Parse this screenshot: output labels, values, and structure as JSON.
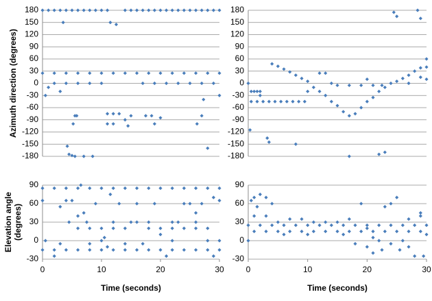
{
  "chart_data": [
    {
      "type": "scatter",
      "y_label": [
        "Azimuth direction (degrees)"
      ],
      "xlim": [
        0,
        30
      ],
      "ylim": [
        -180,
        180
      ],
      "yticks": [
        -180,
        -150,
        -120,
        -90,
        -60,
        -30,
        0,
        30,
        60,
        90,
        120,
        150,
        180
      ],
      "grid": true,
      "x": [
        0,
        1,
        2,
        3,
        4,
        5,
        6,
        7,
        8,
        9,
        10,
        11,
        14,
        15,
        16,
        17,
        18,
        19,
        20,
        21,
        22,
        23,
        24,
        25,
        26,
        27,
        28,
        29,
        30,
        0,
        2,
        4,
        6,
        8,
        10,
        12,
        14,
        16,
        18,
        20,
        22,
        24,
        26,
        28,
        30,
        2,
        4,
        6,
        8,
        10,
        17,
        19,
        21,
        23,
        25,
        27,
        29,
        3.5,
        11.5,
        12.5,
        0.5,
        1,
        3,
        4.2,
        4.5,
        5,
        5.5,
        7,
        8.5,
        5.5,
        5.8,
        5.2,
        11,
        12,
        13,
        11,
        12,
        14,
        14.5,
        15,
        17.5,
        18.5,
        19,
        20,
        26.2,
        27,
        27.3,
        28,
        30
      ],
      "series": [
        {
          "color": "#4a7ebb",
          "values": [
            180,
            180,
            180,
            180,
            180,
            180,
            180,
            180,
            180,
            180,
            180,
            180,
            180,
            180,
            180,
            180,
            180,
            180,
            180,
            180,
            180,
            180,
            180,
            180,
            180,
            180,
            180,
            180,
            180,
            25,
            25,
            25,
            25,
            25,
            25,
            25,
            25,
            25,
            25,
            25,
            25,
            25,
            25,
            25,
            25,
            0,
            0,
            0,
            0,
            0,
            0,
            0,
            0,
            0,
            0,
            0,
            0,
            150,
            150,
            145,
            -30,
            -10,
            -20,
            -155,
            -175,
            -178,
            -180,
            -180,
            -180,
            -80,
            -80,
            -100,
            -75,
            -75,
            -75,
            -100,
            -100,
            -90,
            -105,
            -80,
            -80,
            -80,
            -100,
            -85,
            -100,
            -80,
            -40,
            -160,
            -30
          ]
        }
      ]
    },
    {
      "type": "scatter",
      "xlim": [
        0,
        30
      ],
      "ylim": [
        -180,
        180
      ],
      "yticks": [
        -180,
        -150,
        -120,
        -90,
        -60,
        -30,
        0,
        30,
        60,
        90,
        120,
        150,
        180
      ],
      "grid": true,
      "x": [
        0,
        0.3,
        0.5,
        1,
        1.5,
        2,
        0.5,
        1.5,
        2.5,
        3.5,
        4.5,
        5.5,
        6.5,
        7.5,
        8.5,
        9.5,
        3.2,
        3.5,
        8,
        4,
        5,
        6,
        7,
        8,
        9,
        10,
        11,
        12,
        13,
        14,
        15,
        16,
        17,
        18,
        19,
        20,
        21,
        22,
        23,
        24,
        25,
        26,
        27,
        28,
        29,
        30,
        12,
        13,
        14,
        15,
        17,
        19,
        21,
        22.5,
        30,
        17,
        22,
        23,
        24.5,
        25,
        28.5,
        29,
        30,
        10,
        2,
        20,
        27,
        29
      ],
      "series": [
        {
          "color": "#4a7ebb",
          "values": [
            0,
            -115,
            -20,
            -20,
            -20,
            -20,
            -45,
            -45,
            -45,
            -45,
            -45,
            -45,
            -45,
            -45,
            -45,
            -45,
            -135,
            -145,
            -150,
            48,
            42,
            35,
            28,
            20,
            12,
            5,
            -10,
            -20,
            -30,
            -45,
            -55,
            -70,
            -80,
            -75,
            -60,
            -45,
            -35,
            -20,
            -10,
            0,
            5,
            12,
            20,
            30,
            38,
            40,
            25,
            25,
            0,
            -5,
            -5,
            -5,
            -5,
            -5,
            60,
            -180,
            -175,
            -170,
            175,
            165,
            180,
            160,
            10,
            -20,
            -30,
            10,
            0,
            15
          ]
        }
      ]
    },
    {
      "type": "scatter",
      "y_label": [
        "Elevation angle",
        "(degrees)"
      ],
      "x_label": "Time (seconds)",
      "xlim": [
        0,
        30
      ],
      "xticks": [
        0,
        10,
        20,
        30
      ],
      "ylim": [
        -30,
        90
      ],
      "yticks": [
        -30,
        0,
        30,
        60,
        90
      ],
      "grid": true,
      "x": [
        0,
        2,
        4,
        6,
        8,
        10,
        12,
        14,
        16,
        18,
        20,
        22,
        24,
        26,
        28,
        30,
        0,
        2,
        4,
        6,
        8,
        10,
        12,
        14,
        16,
        18,
        20,
        22,
        24,
        26,
        28,
        30,
        6,
        8,
        10,
        12,
        14,
        18,
        20,
        22,
        24,
        26,
        28,
        0,
        0.5,
        2,
        3,
        4,
        5,
        4.5,
        6,
        6.5,
        7,
        7.5,
        9,
        10,
        10.5,
        11,
        11.5,
        13,
        15,
        16,
        17,
        19,
        20,
        21,
        22,
        23,
        24,
        25,
        26,
        27,
        28,
        29,
        30,
        12,
        8,
        3,
        14,
        16,
        18,
        22,
        26,
        29,
        30
      ],
      "series": [
        {
          "color": "#4a7ebb",
          "values": [
            85,
            85,
            85,
            85,
            85,
            85,
            85,
            85,
            85,
            85,
            85,
            85,
            85,
            85,
            85,
            85,
            -15,
            -15,
            -15,
            -15,
            -15,
            -15,
            -15,
            -15,
            -15,
            -15,
            -15,
            -15,
            -15,
            -15,
            -15,
            -15,
            20,
            20,
            20,
            20,
            20,
            20,
            20,
            20,
            20,
            20,
            20,
            65,
            0,
            -25,
            55,
            65,
            65,
            30,
            40,
            90,
            45,
            30,
            60,
            0,
            5,
            -10,
            75,
            60,
            30,
            60,
            -5,
            60,
            10,
            -25,
            0,
            30,
            60,
            60,
            45,
            60,
            0,
            70,
            65,
            30,
            -5,
            -5,
            -5,
            30,
            30,
            30,
            30,
            -25,
            0
          ]
        }
      ]
    },
    {
      "type": "scatter",
      "x_label": "Time (seconds)",
      "xlim": [
        0,
        30
      ],
      "xticks": [
        0,
        10,
        20,
        30
      ],
      "ylim": [
        -30,
        90
      ],
      "yticks": [
        -30,
        0,
        30,
        60,
        90
      ],
      "grid": true,
      "x": [
        0,
        2,
        4,
        6,
        8,
        10,
        12,
        14,
        16,
        18,
        20,
        22,
        24,
        26,
        28,
        30,
        1,
        3,
        5,
        7,
        9,
        11,
        13,
        15,
        17,
        19,
        21,
        23,
        25,
        27,
        29,
        0,
        0.5,
        1,
        1.5,
        2,
        3,
        4,
        1,
        3,
        5,
        7,
        9,
        11,
        13,
        15,
        17,
        18,
        19,
        20,
        21,
        22,
        22.5,
        23,
        24,
        25,
        25.5,
        26,
        27,
        28,
        29,
        29.5,
        30,
        24,
        20,
        16,
        10,
        6,
        27,
        21,
        29
      ],
      "series": [
        {
          "color": "#4a7ebb",
          "values": [
            25,
            25,
            25,
            25,
            25,
            25,
            25,
            25,
            25,
            25,
            25,
            25,
            25,
            25,
            25,
            25,
            15,
            15,
            15,
            15,
            15,
            15,
            15,
            15,
            15,
            15,
            15,
            15,
            15,
            15,
            15,
            0,
            65,
            70,
            55,
            75,
            70,
            60,
            40,
            40,
            30,
            35,
            35,
            30,
            30,
            30,
            35,
            -5,
            60,
            -10,
            5,
            0,
            -15,
            55,
            60,
            70,
            -15,
            0,
            35,
            -25,
            40,
            -25,
            10,
            -5,
            20,
            10,
            10,
            10,
            -10,
            -20,
            45
          ]
        }
      ]
    }
  ]
}
